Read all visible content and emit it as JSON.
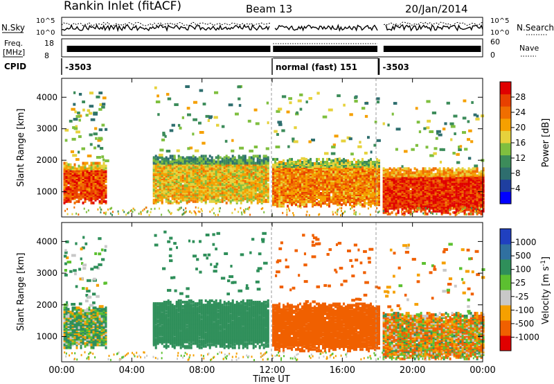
{
  "header": {
    "title": "Rankin Inlet (fitACF)",
    "beam": "Beam 13",
    "date": "20/Jan/2014"
  },
  "top_panels": {
    "nsky_label": "N.Sky",
    "nsky_ticks": [
      "10^5",
      "10^0"
    ],
    "nsearch_label": "N.Search",
    "nsearch_ticks": [
      "10^5",
      "10^0"
    ],
    "freq_label": "Freq.",
    "freq_unit": "[MHz]",
    "freq_ticks": [
      "18",
      "8"
    ],
    "nave_label": "Nave",
    "nave_ticks": [
      "60",
      "0"
    ],
    "cpid_label": "CPID",
    "cpid_segments": [
      {
        "label": "-3503",
        "start_h": 0,
        "end_h": 12
      },
      {
        "label": "normal (fast) 151",
        "start_h": 12,
        "end_h": 18.1
      },
      {
        "label": "-3503",
        "start_h": 18.1,
        "end_h": 24
      }
    ]
  },
  "colors": {
    "power_scale": [
      "#0000ff",
      "#1f3fa0",
      "#2e6e6e",
      "#3c8c5a",
      "#7fbf3f",
      "#e6d23c",
      "#f5a000",
      "#f06e00",
      "#e84000",
      "#e00000"
    ],
    "velocity_scale": [
      "#e00000",
      "#f06000",
      "#f5a000",
      "#c8c8c8",
      "#5cc030",
      "#2f8f5a",
      "#3070a0",
      "#2040c0"
    ]
  },
  "chart_data": [
    {
      "type": "heatmap",
      "title": "",
      "xlabel": "",
      "ylabel": "Slant Range [km]",
      "x_ticks": [
        "00:00",
        "04:00",
        "08:00",
        "12:00",
        "16:00",
        "20:00",
        "00:00"
      ],
      "y_ticks": [
        "1000",
        "2000",
        "3000",
        "4000"
      ],
      "ylim": [
        200,
        4600
      ],
      "colorbar": {
        "label": "Power [dB]",
        "ticks": [
          "4",
          "8",
          "12",
          "16",
          "20",
          "24",
          "28"
        ],
        "range": [
          0,
          30
        ]
      },
      "regions": [
        {
          "t0": 0.1,
          "t1": 2.5,
          "r0": 600,
          "r1": 1900,
          "level": 26
        },
        {
          "t0": 5.2,
          "t1": 11.8,
          "r0": 600,
          "r1": 2100,
          "level": 18
        },
        {
          "t0": 12.0,
          "t1": 18.1,
          "r0": 500,
          "r1": 2000,
          "level": 22
        },
        {
          "t0": 18.3,
          "t1": 24.0,
          "r0": 250,
          "r1": 1700,
          "level": 28
        }
      ]
    },
    {
      "type": "heatmap",
      "title": "",
      "xlabel": "Time UT",
      "ylabel": "Slant Range [km]",
      "x_ticks": [
        "00:00",
        "04:00",
        "08:00",
        "12:00",
        "16:00",
        "20:00",
        "00:00"
      ],
      "y_ticks": [
        "1000",
        "2000",
        "3000",
        "4000"
      ],
      "ylim": [
        200,
        4600
      ],
      "colorbar": {
        "label": "Velocity [m s^-1]",
        "ticks": [
          "1000",
          "500",
          "100",
          "25",
          "-25",
          "-100",
          "-500",
          "-1000"
        ],
        "range": [
          -1000,
          1000
        ]
      },
      "regions": [
        {
          "t0": 0.1,
          "t1": 2.5,
          "r0": 600,
          "r1": 1900,
          "level": 100
        },
        {
          "t0": 5.2,
          "t1": 11.8,
          "r0": 600,
          "r1": 2100,
          "level": 300
        },
        {
          "t0": 12.0,
          "t1": 18.1,
          "r0": 500,
          "r1": 2000,
          "level": -300
        },
        {
          "t0": 18.3,
          "t1": 24.0,
          "r0": 250,
          "r1": 1700,
          "level": -60
        }
      ]
    }
  ]
}
